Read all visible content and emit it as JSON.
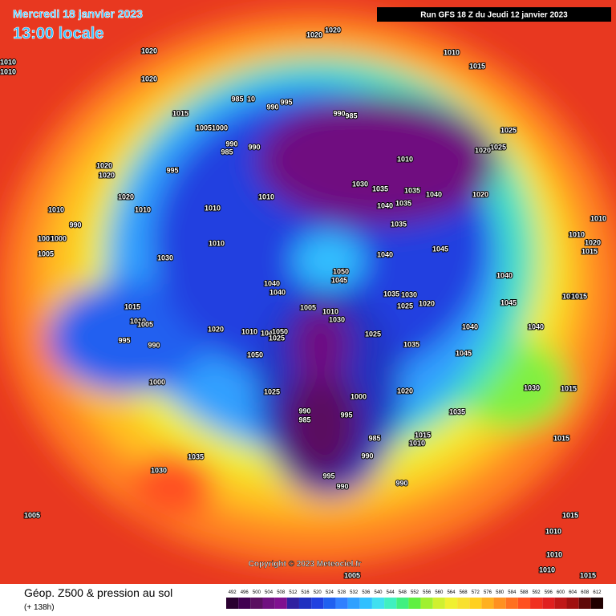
{
  "header": {
    "date": "Mercredi 18 janvier 2023",
    "time": "13:00 locale",
    "run": "Run GFS 18 Z du Jeudi 12 janvier 2023"
  },
  "copyright": "Copyright © 2023 Meteociel.fr",
  "footer": {
    "title": "Géop. Z500 & pression au sol",
    "lead": "(+ 138h)"
  },
  "legend": {
    "values": [
      492,
      496,
      500,
      504,
      508,
      512,
      516,
      520,
      524,
      528,
      532,
      536,
      540,
      544,
      548,
      552,
      556,
      560,
      564,
      568,
      572,
      576,
      580,
      584,
      588,
      592,
      596,
      600,
      604,
      608,
      612
    ],
    "colors": [
      "#2a0030",
      "#400050",
      "#5a1060",
      "#701080",
      "#801090",
      "#3020a0",
      "#2030c0",
      "#2040e0",
      "#2060f0",
      "#3080ff",
      "#30a0ff",
      "#30c0ff",
      "#40e0f0",
      "#40f0c0",
      "#40f080",
      "#60f040",
      "#a0f030",
      "#d0f030",
      "#f0f030",
      "#f8e030",
      "#ffd020",
      "#ffb020",
      "#ff9020",
      "#ff7020",
      "#ff5020",
      "#f03020",
      "#e02020",
      "#c01818",
      "#a01010",
      "#600808",
      "#200000"
    ]
  },
  "isobar_labels": [
    "1020",
    "1020",
    "1010",
    "1015",
    "1010",
    "1010",
    "1020",
    "1020",
    "1015",
    "1005",
    "1000",
    "985",
    "10",
    "990",
    "995",
    "990",
    "985",
    "990",
    "985",
    "990",
    "1010",
    "1025",
    "1025",
    "1020",
    "1020",
    "1020",
    "995",
    "1020",
    "1010",
    "1010",
    "1010",
    "1030",
    "1035",
    "1035",
    "1040",
    "1040",
    "1035",
    "1020",
    "1010",
    "990",
    "1005",
    "1000",
    "1005",
    "1030",
    "1010",
    "1035",
    "1040",
    "1045",
    "1010",
    "1010",
    "1020",
    "1015",
    "1050",
    "1045",
    "1040",
    "1040",
    "1030",
    "1035",
    "1025",
    "1020",
    "1040",
    "1010",
    "1015",
    "1045",
    "1015",
    "1010",
    "1005",
    "995",
    "990",
    "1020",
    "1010",
    "1030",
    "1010",
    "1040",
    "1050",
    "1025",
    "1050",
    "1025",
    "1040",
    "1040",
    "1035",
    "1045",
    "1000",
    "1025",
    "1000",
    "1030",
    "1015",
    "1020",
    "990",
    "985",
    "995",
    "1035",
    "985",
    "1015",
    "1010",
    "990",
    "1015",
    "1035",
    "1030",
    "995",
    "990",
    "990",
    "1005",
    "1015",
    "1010",
    "1010",
    "1010",
    "1005",
    "1015",
    "1005"
  ]
}
